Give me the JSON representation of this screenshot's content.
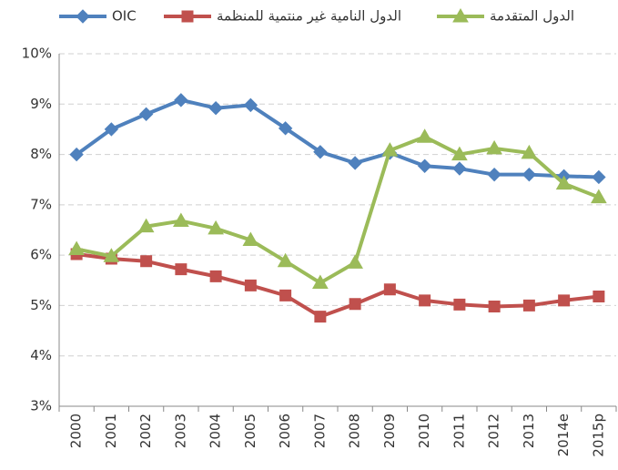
{
  "chart_data": {
    "type": "line",
    "categories": [
      "2000",
      "2001",
      "2002",
      "2003",
      "2004",
      "2005",
      "2006",
      "2007",
      "2008",
      "2009",
      "2010",
      "2011",
      "2012",
      "2013",
      "2014e",
      "2015p"
    ],
    "series": [
      {
        "name": "OIC",
        "color": "#4f81bd",
        "marker": "diamond",
        "values": [
          8.0,
          8.5,
          8.8,
          9.08,
          8.92,
          8.98,
          8.52,
          8.05,
          7.83,
          8.03,
          7.77,
          7.72,
          7.6,
          7.6,
          7.57,
          7.55
        ]
      },
      {
        "name": "الدول النامية غير منتمية للمنظمة",
        "color": "#c0504d",
        "marker": "square",
        "values": [
          6.02,
          5.93,
          5.88,
          5.72,
          5.58,
          5.4,
          5.2,
          4.78,
          5.03,
          5.32,
          5.1,
          5.02,
          4.98,
          5.0,
          5.1,
          5.18
        ]
      },
      {
        "name": "الدول المتقدمة",
        "color": "#9bbb59",
        "marker": "triangle",
        "values": [
          6.12,
          5.98,
          6.57,
          6.68,
          6.53,
          6.3,
          5.88,
          5.45,
          5.85,
          8.08,
          8.35,
          8.0,
          8.12,
          8.03,
          7.42,
          7.15
        ]
      }
    ],
    "ylim": [
      3,
      10
    ],
    "yticks": [
      {
        "value": 3,
        "label": "3%"
      },
      {
        "value": 4,
        "label": "4%"
      },
      {
        "value": 5,
        "label": "5%"
      },
      {
        "value": 6,
        "label": "6%"
      },
      {
        "value": 7,
        "label": "7%"
      },
      {
        "value": 8,
        "label": "8%"
      },
      {
        "value": 9,
        "label": "9%"
      },
      {
        "value": 10,
        "label": "10%"
      }
    ],
    "grid": true,
    "legend": "top"
  }
}
